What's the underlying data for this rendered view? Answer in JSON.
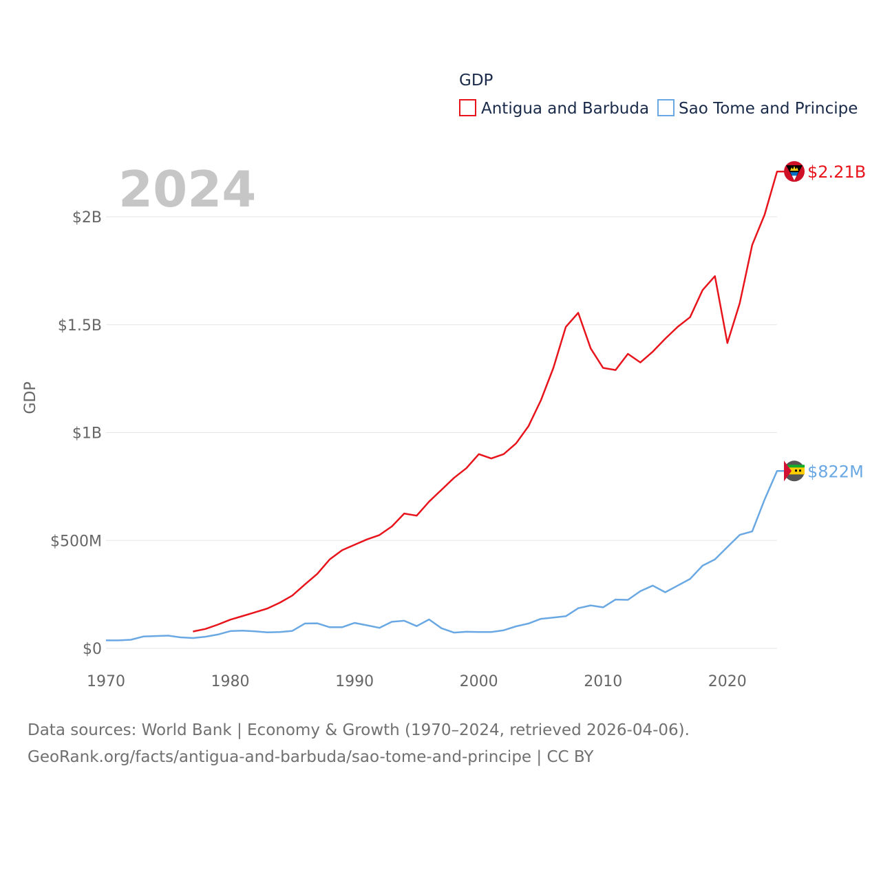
{
  "colors": {
    "series1": "#e8141c",
    "series2": "#6aa8e4"
  },
  "chart_data": {
    "type": "line",
    "title": "GDP",
    "ylabel": "GDP",
    "xlabel": "",
    "year_label": "2024",
    "xlim": [
      1970,
      2024
    ],
    "ylim": [
      0,
      2200000000
    ],
    "x_ticks": [
      1970,
      1980,
      1990,
      2000,
      2010,
      2020
    ],
    "x_tick_labels": [
      "1970",
      "1980",
      "1990",
      "2000",
      "2010",
      "2020"
    ],
    "y_ticks": [
      0,
      500000000,
      1000000000,
      1500000000,
      2000000000
    ],
    "y_tick_labels": [
      "$0",
      "$500M",
      "$1B",
      "$1.5B",
      "$2B"
    ],
    "legend": {
      "title": "GDP",
      "position": "top-right"
    },
    "series": [
      {
        "name": "Antigua and Barbuda",
        "end_label": "$2.21B",
        "x": [
          1977,
          1978,
          1979,
          1980,
          1981,
          1982,
          1983,
          1984,
          1985,
          1986,
          1987,
          1988,
          1989,
          1990,
          1991,
          1992,
          1993,
          1994,
          1995,
          1996,
          1997,
          1998,
          1999,
          2000,
          2001,
          2002,
          2003,
          2004,
          2005,
          2006,
          2007,
          2008,
          2009,
          2010,
          2011,
          2012,
          2013,
          2014,
          2015,
          2016,
          2017,
          2018,
          2019,
          2020,
          2021,
          2022,
          2023,
          2024
        ],
        "values": [
          78000000,
          90000000,
          110000000,
          133000000,
          150000000,
          167000000,
          185000000,
          212000000,
          245000000,
          296000000,
          345000000,
          412000000,
          455000000,
          480000000,
          505000000,
          525000000,
          565000000,
          625000000,
          615000000,
          680000000,
          735000000,
          790000000,
          835000000,
          900000000,
          880000000,
          900000000,
          950000000,
          1030000000,
          1150000000,
          1300000000,
          1490000000,
          1555000000,
          1390000000,
          1300000000,
          1290000000,
          1365000000,
          1325000000,
          1375000000,
          1435000000,
          1490000000,
          1535000000,
          1660000000,
          1725000000,
          1415000000,
          1600000000,
          1870000000,
          2010000000,
          2210000000
        ]
      },
      {
        "name": "Sao Tome and Principe",
        "end_label": "$822M",
        "x": [
          1970,
          1971,
          1972,
          1973,
          1974,
          1975,
          1976,
          1977,
          1978,
          1979,
          1980,
          1981,
          1982,
          1983,
          1984,
          1985,
          1986,
          1987,
          1988,
          1989,
          1990,
          1991,
          1992,
          1993,
          1994,
          1995,
          1996,
          1997,
          1998,
          1999,
          2000,
          2001,
          2002,
          2003,
          2004,
          2005,
          2006,
          2007,
          2008,
          2009,
          2010,
          2011,
          2012,
          2013,
          2014,
          2015,
          2016,
          2017,
          2018,
          2019,
          2020,
          2021,
          2022,
          2023,
          2024
        ],
        "values": [
          37000000,
          37000000,
          40000000,
          55000000,
          57000000,
          59000000,
          51000000,
          48000000,
          54000000,
          64000000,
          80000000,
          82000000,
          79000000,
          74000000,
          76000000,
          81000000,
          115000000,
          116000000,
          98000000,
          98000000,
          118000000,
          107000000,
          95000000,
          123000000,
          128000000,
          103000000,
          134000000,
          93000000,
          73000000,
          77000000,
          76000000,
          76000000,
          84000000,
          102000000,
          115000000,
          137000000,
          143000000,
          149000000,
          186000000,
          199000000,
          190000000,
          226000000,
          225000000,
          265000000,
          291000000,
          260000000,
          291000000,
          322000000,
          383000000,
          412000000,
          470000000,
          526000000,
          542000000,
          690000000,
          822000000
        ]
      }
    ]
  },
  "footer": {
    "line1": "Data sources: World Bank | Economy & Growth (1970–2024, retrieved 2026-04-06).",
    "line2": "GeoRank.org/facts/antigua-and-barbuda/sao-tome-and-principe | CC BY"
  }
}
